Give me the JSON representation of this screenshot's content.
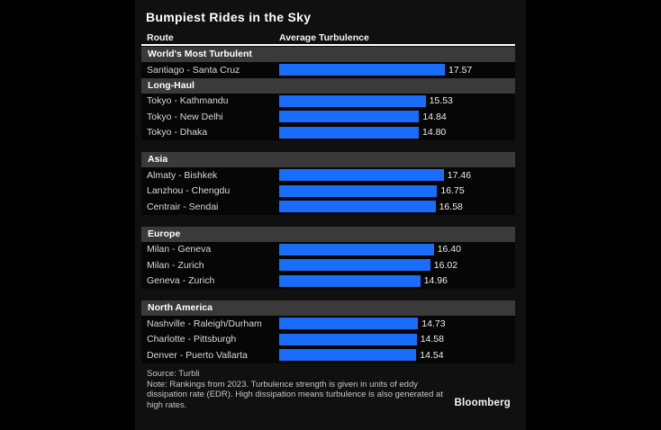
{
  "title": "Bumpiest Rides in the Sky",
  "columns": {
    "route": "Route",
    "turbulence": "Average Turbulence"
  },
  "colors": {
    "bar": "#1a6cfa",
    "section_bg": "#3a3a3a",
    "background": "#000000",
    "panel": "#101010"
  },
  "chart_data": {
    "type": "bar",
    "orientation": "horizontal",
    "title": "Bumpiest Rides in the Sky",
    "xlabel": "Average Turbulence",
    "ylabel": "Route",
    "x_max": 17.57,
    "xlim": [
      0,
      17.57
    ],
    "grid": false,
    "legend": "none",
    "units": "eddy dissipation rate (EDR)",
    "groups": [
      {
        "label": "World's Most Turbulent",
        "rows": [
          {
            "route": "Santiago - Santa Cruz",
            "value": 17.57,
            "display": "17.57"
          }
        ]
      },
      {
        "label": "Long-Haul",
        "rows": [
          {
            "route": "Tokyo - Kathmandu",
            "value": 15.53,
            "display": "15.53"
          },
          {
            "route": "Tokyo - New Delhi",
            "value": 14.84,
            "display": "14.84"
          },
          {
            "route": "Tokyo - Dhaka",
            "value": 14.8,
            "display": "14.80"
          }
        ]
      },
      {
        "label": "Asia",
        "rows": [
          {
            "route": "Almaty - Bishkek",
            "value": 17.46,
            "display": "17.46"
          },
          {
            "route": "Lanzhou - Chengdu",
            "value": 16.75,
            "display": "16.75"
          },
          {
            "route": "Centrair - Sendai",
            "value": 16.58,
            "display": "16.58"
          }
        ]
      },
      {
        "label": "Europe",
        "rows": [
          {
            "route": "Milan - Geneva",
            "value": 16.4,
            "display": "16.40"
          },
          {
            "route": "Milan - Zurich",
            "value": 16.02,
            "display": "16.02"
          },
          {
            "route": "Geneva - Zurich",
            "value": 14.96,
            "display": "14.96"
          }
        ]
      },
      {
        "label": "North America",
        "rows": [
          {
            "route": "Nashville - Raleigh/Durham",
            "value": 14.73,
            "display": "14.73"
          },
          {
            "route": "Charlotte - Pittsburgh",
            "value": 14.58,
            "display": "14.58"
          },
          {
            "route": "Denver - Puerto Vallarta",
            "value": 14.54,
            "display": "14.54"
          }
        ]
      }
    ]
  },
  "footer": {
    "source": "Source: Turbli",
    "note_lines": [
      "Note: Rankings from 2023. Turbulence strength is given in units of eddy",
      "dissipation rate (EDR). High dissipation means turbulence is also generated at",
      "high rates."
    ],
    "logo": "Bloomberg"
  }
}
